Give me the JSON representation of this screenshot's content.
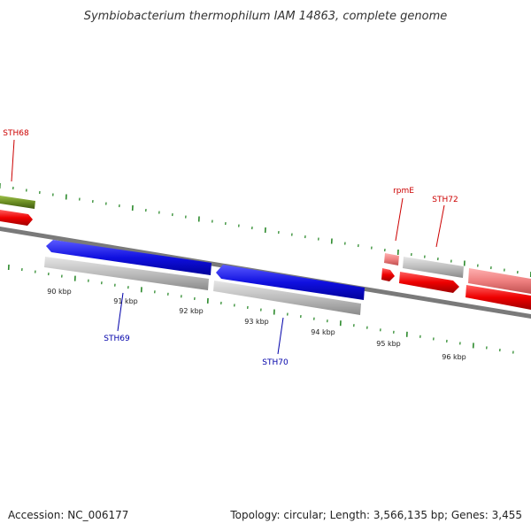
{
  "title": "Symbiobacterium thermophilum IAM 14863, complete genome",
  "footer": {
    "accession": "Accession: NC_006177",
    "topology": "Topology: circular; Length: 3,566,135 bp; Genes: 3,455"
  },
  "kbp_labels": [
    "90 kbp",
    "91 kbp",
    "92 kbp",
    "93 kbp",
    "94 kbp",
    "95 kbp",
    "96 kbp"
  ],
  "gene_labels": [
    {
      "name": "STH68",
      "color": "#cc0000"
    },
    {
      "name": "STH69",
      "color": "#0000aa"
    },
    {
      "name": "STH70",
      "color": "#0000aa"
    },
    {
      "name": "rpmE",
      "color": "#cc0000"
    },
    {
      "name": "STH72",
      "color": "#cc0000"
    }
  ],
  "colors": {
    "cds_forward": "#1010e0",
    "cds_reverse": "#ee0000",
    "rna": "#ee7f7f",
    "gene_grey": "#b8b8b8",
    "olive": "#6b8e23",
    "tick": "#2e8b2e",
    "backbone": "#777777"
  }
}
